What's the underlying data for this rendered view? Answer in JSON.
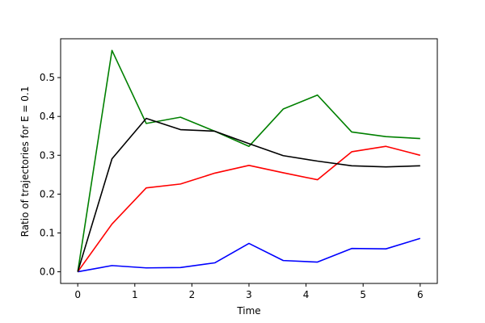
{
  "chart_data": {
    "type": "line",
    "xlabel": "Time",
    "ylabel": "Ratio of trajectories for E = 0.1",
    "xlim": [
      -0.3,
      6.3
    ],
    "ylim": [
      -0.03,
      0.6
    ],
    "xticks": [
      "0",
      "1",
      "2",
      "3",
      "4",
      "5",
      "6"
    ],
    "yticks": [
      "0.0",
      "0.1",
      "0.2",
      "0.3",
      "0.4",
      "0.5"
    ],
    "grid": false,
    "x": [
      0,
      0.6,
      1.2,
      1.8,
      2.4,
      3.0,
      3.6,
      4.2,
      4.8,
      5.4,
      6.0
    ],
    "series": [
      {
        "color": "#0000ff",
        "values": [
          0.0,
          0.016,
          0.01,
          0.011,
          0.023,
          0.073,
          0.029,
          0.025,
          0.06,
          0.059,
          0.086
        ]
      },
      {
        "color": "#ff0000",
        "values": [
          0.0,
          0.123,
          0.216,
          0.226,
          0.254,
          0.274,
          0.255,
          0.237,
          0.309,
          0.323,
          0.3
        ]
      },
      {
        "color": "#008000",
        "values": [
          0.0,
          0.57,
          0.382,
          0.398,
          0.362,
          0.323,
          0.419,
          0.455,
          0.36,
          0.348,
          0.343
        ]
      },
      {
        "color": "#000000",
        "values": [
          0.0,
          0.291,
          0.395,
          0.366,
          0.362,
          0.33,
          0.299,
          0.285,
          0.273,
          0.27,
          0.273
        ]
      }
    ]
  }
}
